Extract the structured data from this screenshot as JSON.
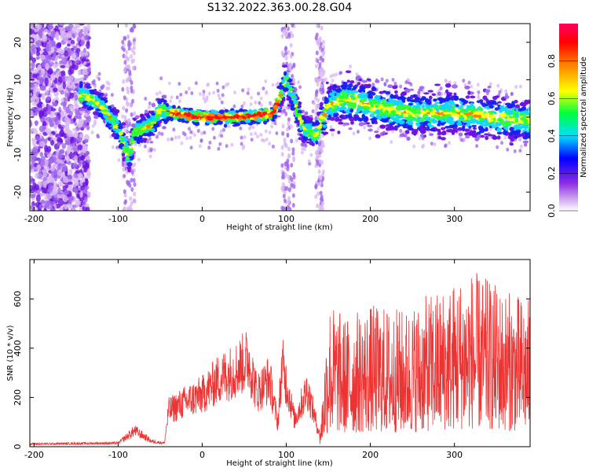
{
  "chart_data": [
    {
      "type": "heatmap",
      "title": "S132.2022.363.00.28.G04",
      "xlabel": "Height of straight line (km)",
      "ylabel": "Frequency (Hz)",
      "xlim": [
        -205,
        390
      ],
      "ylim": [
        -25,
        25
      ],
      "xticks": [
        -200,
        -100,
        0,
        100,
        200,
        300
      ],
      "yticks": [
        -20,
        -10,
        0,
        10,
        20
      ],
      "colorbar": {
        "label": "Normalized spectral amplitude",
        "range": [
          0,
          1
        ],
        "ticks": [
          "0.0",
          "0.2",
          "0.4",
          "0.6",
          "0.8"
        ],
        "colormap": [
          "#ffffff",
          "#d8b8f0",
          "#8a2be2",
          "#0000ff",
          "#00e0ff",
          "#00ff40",
          "#ffff00",
          "#ff8000",
          "#ff0000",
          "#ff0060"
        ]
      },
      "ridge": [
        {
          "x": -140,
          "y": 6
        },
        {
          "x": -120,
          "y": 3
        },
        {
          "x": -100,
          "y": -3
        },
        {
          "x": -87,
          "y": -11
        },
        {
          "x": -80,
          "y": -4
        },
        {
          "x": -60,
          "y": -2
        },
        {
          "x": -50,
          "y": 2
        },
        {
          "x": -35,
          "y": 1
        },
        {
          "x": 0,
          "y": 0
        },
        {
          "x": 50,
          "y": 0
        },
        {
          "x": 85,
          "y": 1
        },
        {
          "x": 100,
          "y": 10
        },
        {
          "x": 120,
          "y": -3
        },
        {
          "x": 135,
          "y": -5
        },
        {
          "x": 150,
          "y": 3
        },
        {
          "x": 170,
          "y": 5
        },
        {
          "x": 200,
          "y": 3
        },
        {
          "x": 250,
          "y": 1
        },
        {
          "x": 300,
          "y": 1
        },
        {
          "x": 350,
          "y": 0
        },
        {
          "x": 385,
          "y": -1
        }
      ]
    },
    {
      "type": "line",
      "xlabel": "Height of straight line (km)",
      "ylabel": "SNR (10 * v/v)",
      "xlim": [
        -205,
        390
      ],
      "ylim": [
        0,
        760
      ],
      "xticks": [
        -200,
        -100,
        0,
        100,
        200,
        300
      ],
      "yticks": [
        0,
        200,
        400,
        600
      ],
      "color": "#ee3333",
      "envelope": [
        {
          "x": -205,
          "y": 15
        },
        {
          "x": -100,
          "y": 20
        },
        {
          "x": -80,
          "y": 90
        },
        {
          "x": -60,
          "y": 30
        },
        {
          "x": -45,
          "y": 20
        },
        {
          "x": -40,
          "y": 200
        },
        {
          "x": -20,
          "y": 250
        },
        {
          "x": 0,
          "y": 290
        },
        {
          "x": 20,
          "y": 380
        },
        {
          "x": 40,
          "y": 430
        },
        {
          "x": 55,
          "y": 490
        },
        {
          "x": 65,
          "y": 300
        },
        {
          "x": 80,
          "y": 380
        },
        {
          "x": 90,
          "y": 130
        },
        {
          "x": 95,
          "y": 460
        },
        {
          "x": 110,
          "y": 150
        },
        {
          "x": 125,
          "y": 320
        },
        {
          "x": 140,
          "y": 60
        },
        {
          "x": 150,
          "y": 600
        },
        {
          "x": 170,
          "y": 530
        },
        {
          "x": 200,
          "y": 580
        },
        {
          "x": 240,
          "y": 560
        },
        {
          "x": 280,
          "y": 640
        },
        {
          "x": 320,
          "y": 720
        },
        {
          "x": 360,
          "y": 640
        },
        {
          "x": 390,
          "y": 600
        }
      ]
    }
  ]
}
